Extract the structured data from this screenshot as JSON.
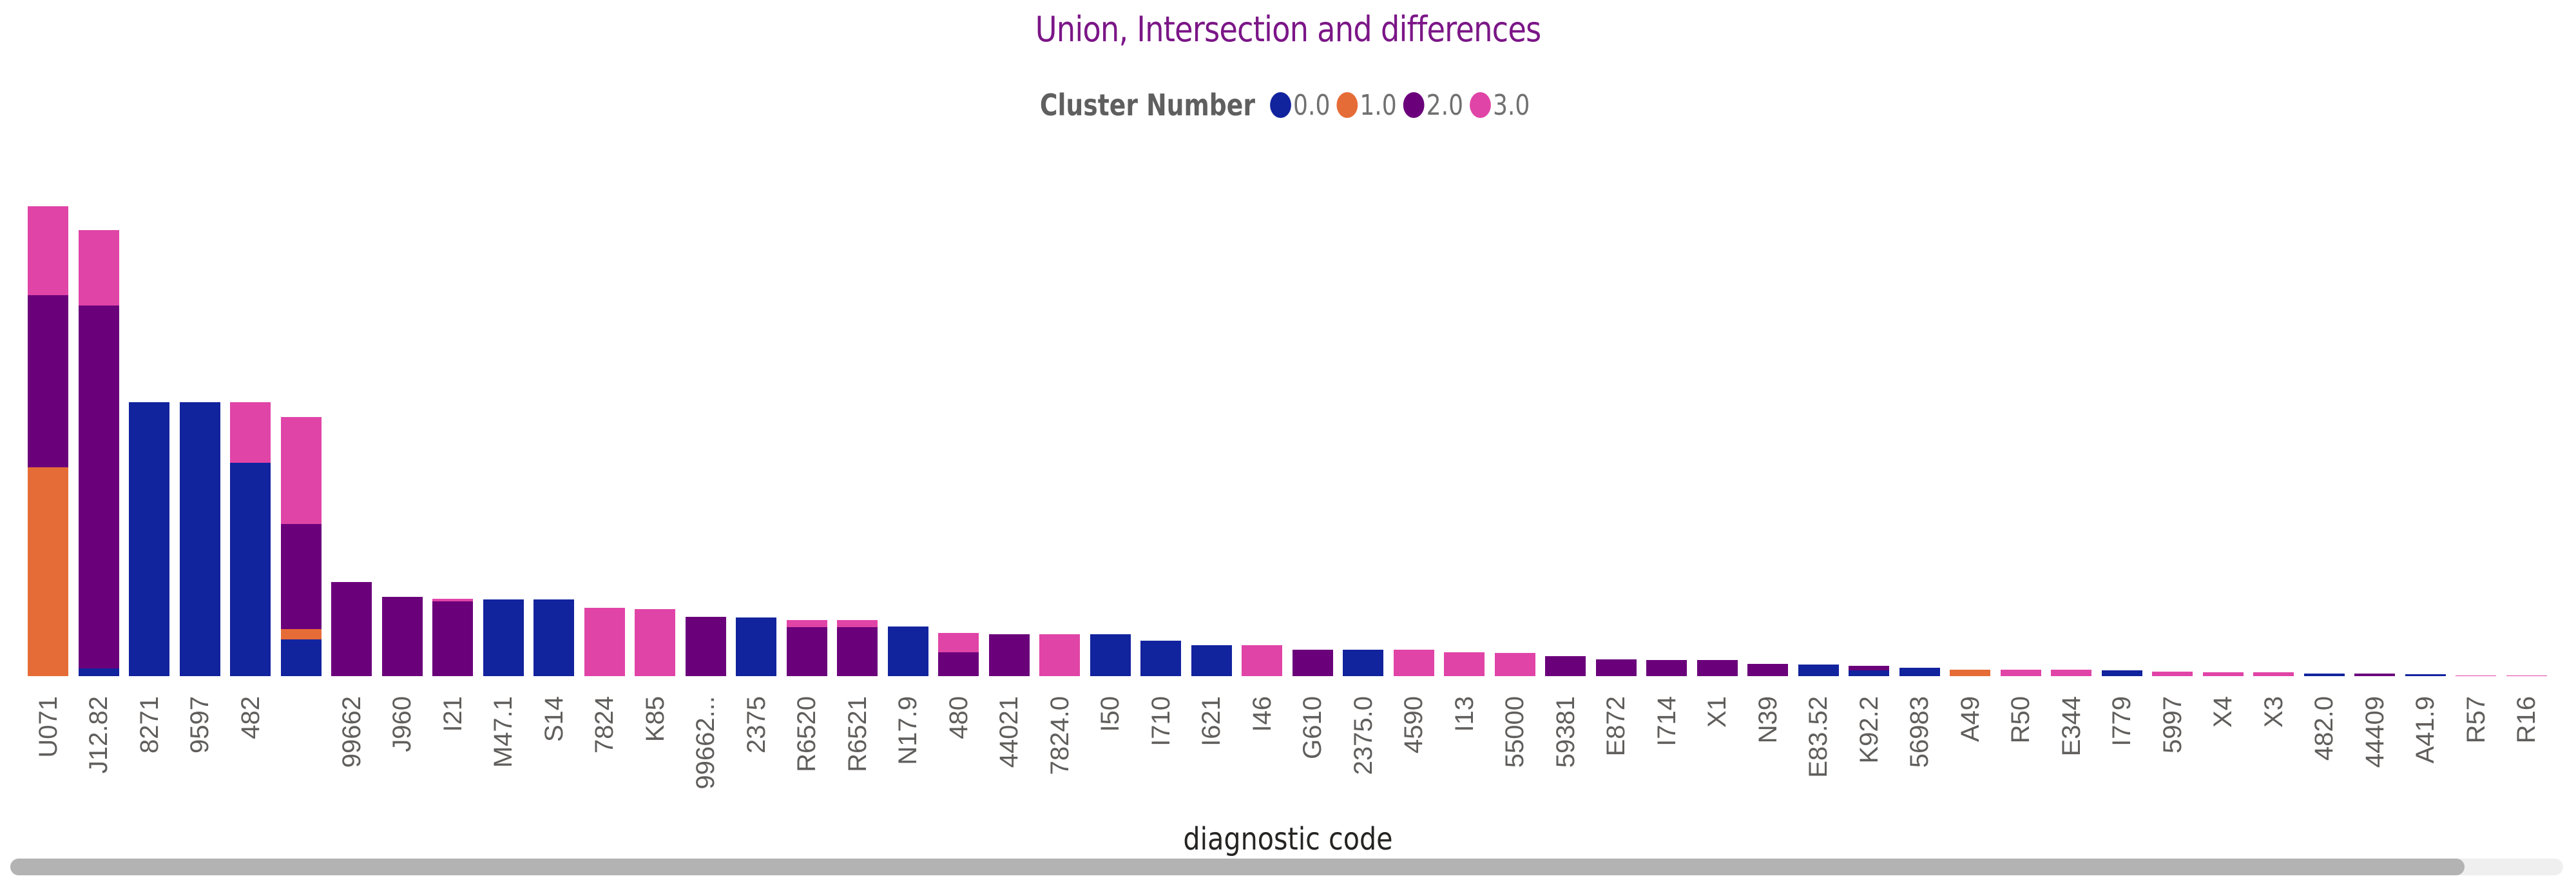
{
  "title": "Union, Intersection and differences",
  "legend": {
    "title": "Cluster Number",
    "items": [
      {
        "label": "0.0",
        "color": "#12239e"
      },
      {
        "label": "1.0",
        "color": "#e66c37"
      },
      {
        "label": "2.0",
        "color": "#6b007b"
      },
      {
        "label": "3.0",
        "color": "#e044a7"
      }
    ]
  },
  "x_axis_title": "diagnostic code",
  "chart_data": {
    "type": "bar",
    "stacked": true,
    "title": "Union, Intersection and differences",
    "xlabel": "diagnostic code",
    "ylabel": "",
    "y_axis_visible": false,
    "legend_title": "Cluster Number",
    "legend_position": "top-center",
    "grid": false,
    "note": "No y-axis shown; values are relative bar heights estimated from pixels",
    "categories": [
      "U071",
      "J12.82",
      "8271",
      "9597",
      "482",
      "",
      "99662",
      "J960",
      "I21",
      "M47.1",
      "S14",
      "7824",
      "K85",
      "99662...",
      "2375",
      "R6520",
      "R6521",
      "N17.9",
      "480",
      "44021",
      "7824.0",
      "I50",
      "I710",
      "I621",
      "I46",
      "G610",
      "2375.0",
      "4590",
      "I13",
      "55000",
      "59381",
      "E872",
      "I714",
      "X1",
      "N39",
      "E83.52",
      "K92.2",
      "56983",
      "A49",
      "R50",
      "E344",
      "I779",
      "5997",
      "X4",
      "X3",
      "482.0",
      "44409",
      "A41.9",
      "R57",
      "R16"
    ],
    "series": [
      {
        "name": "0.0",
        "color": "#12239e",
        "values": [
          0,
          12,
          425,
          425,
          331,
          57,
          0,
          0,
          0,
          119,
          119,
          0,
          0,
          0,
          91,
          0,
          0,
          77,
          0,
          0,
          0,
          65,
          55,
          48,
          0,
          0,
          41,
          0,
          0,
          0,
          0,
          0,
          0,
          0,
          0,
          18,
          9,
          13,
          0,
          0,
          0,
          9,
          0,
          0,
          0,
          4,
          0,
          3,
          0,
          0
        ]
      },
      {
        "name": "1.0",
        "color": "#e66c37",
        "values": [
          324,
          0,
          0,
          0,
          0,
          16,
          0,
          0,
          0,
          0,
          0,
          0,
          0,
          0,
          0,
          0,
          0,
          0,
          0,
          0,
          0,
          0,
          0,
          0,
          0,
          0,
          0,
          0,
          0,
          0,
          0,
          0,
          0,
          0,
          0,
          0,
          0,
          0,
          10,
          0,
          0,
          0,
          0,
          0,
          0,
          0,
          0,
          0,
          0,
          0
        ]
      },
      {
        "name": "2.0",
        "color": "#6b007b",
        "values": [
          267,
          563,
          0,
          0,
          0,
          163,
          146,
          123,
          116,
          0,
          0,
          0,
          0,
          92,
          0,
          76,
          76,
          0,
          37,
          65,
          0,
          0,
          0,
          0,
          0,
          41,
          0,
          0,
          0,
          0,
          31,
          26,
          25,
          25,
          19,
          0,
          7,
          0,
          0,
          0,
          0,
          0,
          0,
          0,
          0,
          0,
          4,
          0,
          0,
          0
        ]
      },
      {
        "name": "3.0",
        "color": "#e044a7",
        "values": [
          138,
          117,
          0,
          0,
          94,
          166,
          0,
          0,
          4,
          0,
          0,
          106,
          104,
          0,
          0,
          11,
          11,
          0,
          30,
          0,
          65,
          0,
          0,
          0,
          48,
          0,
          0,
          41,
          37,
          36,
          0,
          0,
          0,
          0,
          0,
          0,
          0,
          0,
          0,
          10,
          10,
          0,
          7,
          6,
          6,
          0,
          0,
          0,
          1,
          1
        ]
      }
    ]
  },
  "scrollbar": {
    "orientation": "horizontal",
    "thumb_start_pct": 0,
    "thumb_end_pct": 96
  }
}
